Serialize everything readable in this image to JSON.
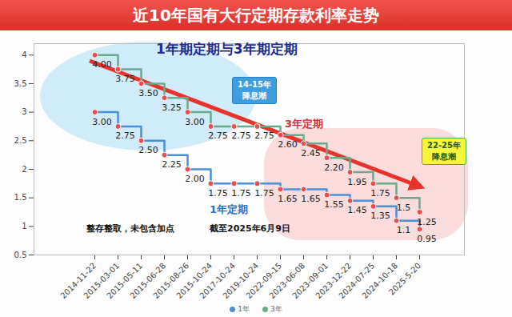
{
  "chart_data": {
    "type": "line",
    "title": "近10年国有大行定期存款利率走势",
    "subtitle": "1年期定期与3年期定期",
    "categories": [
      "2014-11-22",
      "2015-03-01",
      "2015-05-11",
      "2015-06-28",
      "2015-08-26",
      "2015-10-24",
      "2017-10-24",
      "2019-10-24",
      "2022-09-15",
      "2023-06-08",
      "2023-09-01",
      "2023-12-22",
      "2024-07-25",
      "2024-10-18",
      "2025-5-20"
    ],
    "series": [
      {
        "name": "1年",
        "color": "#4a90d9",
        "line_style": "step",
        "marker": "circle",
        "values": [
          3.0,
          2.75,
          2.5,
          2.25,
          2.0,
          1.75,
          1.75,
          1.75,
          1.65,
          1.65,
          1.55,
          1.45,
          1.35,
          1.1,
          0.95
        ],
        "value_labels": [
          "3.00",
          "2.75",
          "2.50",
          "2.25",
          "2.00",
          "1.75",
          "1.75",
          "1.75",
          "1.65",
          "1.65",
          "1.55",
          "1.45",
          "1.35",
          "1.1",
          "0.95"
        ]
      },
      {
        "name": "3年",
        "color": "#6aaa8c",
        "line_style": "step",
        "marker": "circle",
        "values": [
          4.0,
          3.75,
          3.5,
          3.25,
          3.0,
          2.75,
          2.75,
          2.75,
          2.6,
          2.45,
          2.2,
          1.95,
          1.75,
          1.5,
          1.25
        ],
        "value_labels": [
          "4.00",
          "3.75",
          "3.50",
          "3.25",
          "3.00",
          "2.75",
          "2.75",
          "2.75",
          "2.60",
          "2.45",
          "2.20",
          "1.95",
          "1.75",
          "1.5",
          "1.25"
        ]
      }
    ],
    "ylim": [
      0.5,
      4.2
    ],
    "yticks": [
      0.5,
      1,
      1.5,
      2,
      2.5,
      3,
      3.5,
      4
    ],
    "grid": false,
    "legend": "bottom",
    "data_labels": true,
    "annotations": [
      "14-15年\n降息潮",
      "3年定期",
      "1年定期",
      "22-25年\n降息潮",
      "整存整取，未包含加点",
      "截至2025年6月9日"
    ]
  }
}
